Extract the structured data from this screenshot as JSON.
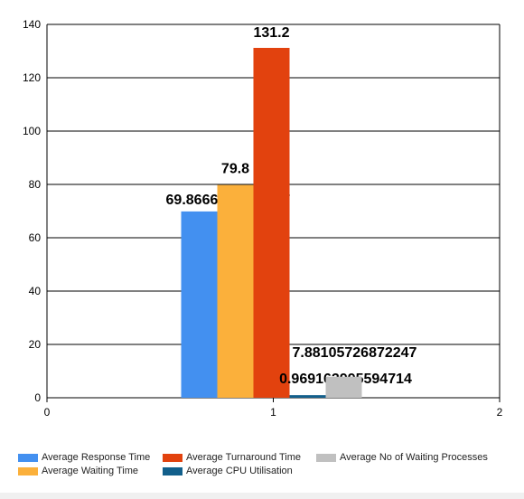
{
  "chart_data": {
    "type": "bar",
    "x": [
      1
    ],
    "xlim": [
      0,
      2
    ],
    "ylim": [
      0,
      140
    ],
    "xticks": [
      0,
      1,
      2
    ],
    "yticks": [
      0,
      20,
      40,
      60,
      80,
      100,
      120,
      140
    ],
    "grid": "horizontal",
    "legend_position": "bottom",
    "series": [
      {
        "name": "Average Response Time",
        "values": [
          69.8666666666667
        ],
        "label": "69.8666666666667",
        "color": "#4390f0"
      },
      {
        "name": "Average Waiting Time",
        "values": [
          79.8
        ],
        "label": "79.8",
        "color": "#fbb03b"
      },
      {
        "name": "Average Turnaround Time",
        "values": [
          131.2
        ],
        "label": "131.2",
        "color": "#e2420e"
      },
      {
        "name": "Average CPU Utilisation",
        "values": [
          0.969162995594714
        ],
        "label": "0.969162995594714",
        "color": "#125f8b"
      },
      {
        "name": "Average No of Waiting Processes",
        "values": [
          7.88105726872247
        ],
        "label": "7.88105726872247",
        "color": "#c0c0c0"
      }
    ]
  }
}
